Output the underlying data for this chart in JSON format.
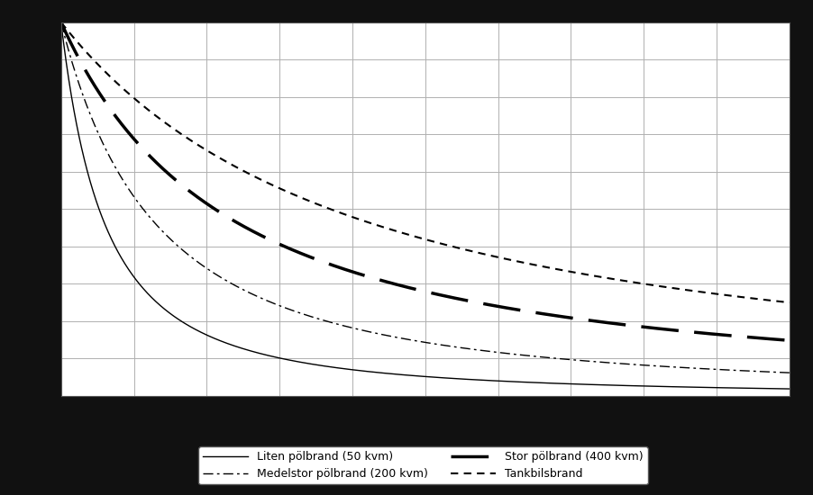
{
  "title": "",
  "xlabel": "",
  "ylabel": "",
  "xlim": [
    0,
    100
  ],
  "ylim": [
    0,
    100
  ],
  "grid_color": "#b0b0b0",
  "plot_bg": "#ffffff",
  "outer_bg": "#111111",
  "legend_fontsize": 9,
  "legend_ncol": 2,
  "curves": [
    {
      "label": "Liten pölbrand (50 kvm)",
      "linestyle": "solid",
      "linewidth": 1.0,
      "color": "#000000",
      "A": 12.0,
      "n": 1.65,
      "x0": 0.0
    },
    {
      "label": "Tankbilsbrand",
      "linestyle": [
        4,
        3
      ],
      "linewidth": 1.5,
      "color": "#000000",
      "A": 3.0,
      "n": 1.4,
      "x0": 0.0
    },
    {
      "label": "Medelstor pölbrand (200 kvm)",
      "linestyle": [
        8,
        3,
        2,
        3
      ],
      "linewidth": 1.0,
      "color": "#000000",
      "A": 5.5,
      "n": 1.55,
      "x0": 0.0
    },
    {
      "label": "Stor pölbrand (400 kvm)",
      "linestyle": [
        12,
        5
      ],
      "linewidth": 2.5,
      "color": "#000000",
      "A": 2.2,
      "n": 1.35,
      "x0": 0.0
    }
  ]
}
